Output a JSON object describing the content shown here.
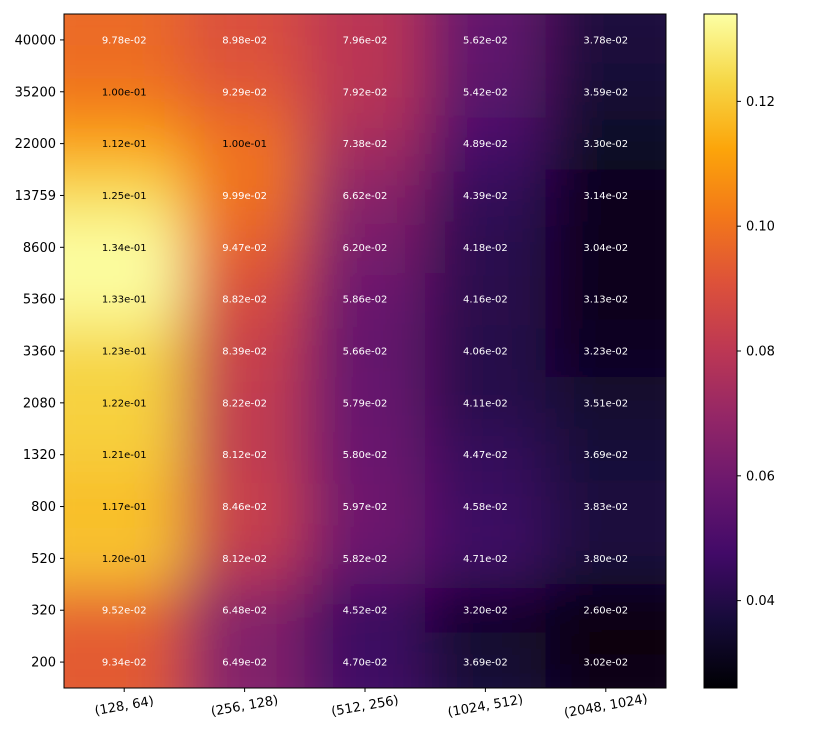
{
  "chart_data": {
    "type": "heatmap",
    "title": "",
    "xlabel": "",
    "ylabel": "",
    "x_categories": [
      "(128, 64)",
      "(256, 128)",
      "(512, 256)",
      "(1024, 512)",
      "(2048, 1024)"
    ],
    "y_categories": [
      "40000",
      "35200",
      "22000",
      "13759",
      "8600",
      "5360",
      "3360",
      "2080",
      "1320",
      "800",
      "520",
      "320",
      "200"
    ],
    "values": [
      [
        0.0978,
        0.0898,
        0.0796,
        0.0562,
        0.0378
      ],
      [
        0.1,
        0.0929,
        0.0792,
        0.0542,
        0.0359
      ],
      [
        0.112,
        0.1,
        0.0738,
        0.0489,
        0.033
      ],
      [
        0.125,
        0.0999,
        0.0662,
        0.0439,
        0.0314
      ],
      [
        0.134,
        0.0947,
        0.062,
        0.0418,
        0.0304
      ],
      [
        0.133,
        0.0882,
        0.0586,
        0.0416,
        0.0313
      ],
      [
        0.123,
        0.0839,
        0.0566,
        0.0406,
        0.0323
      ],
      [
        0.122,
        0.0822,
        0.0579,
        0.0411,
        0.0351
      ],
      [
        0.121,
        0.0812,
        0.058,
        0.0447,
        0.0369
      ],
      [
        0.117,
        0.0846,
        0.0597,
        0.0458,
        0.0383
      ],
      [
        0.12,
        0.0812,
        0.0582,
        0.0471,
        0.038
      ],
      [
        0.0952,
        0.0648,
        0.0452,
        0.032,
        0.026
      ],
      [
        0.0934,
        0.0649,
        0.047,
        0.0369,
        0.0302
      ]
    ],
    "labels": [
      [
        "9.78e-02",
        "8.98e-02",
        "7.96e-02",
        "5.62e-02",
        "3.78e-02"
      ],
      [
        "1.00e-01",
        "9.29e-02",
        "7.92e-02",
        "5.42e-02",
        "3.59e-02"
      ],
      [
        "1.12e-01",
        "1.00e-01",
        "7.38e-02",
        "4.89e-02",
        "3.30e-02"
      ],
      [
        "1.25e-01",
        "9.99e-02",
        "6.62e-02",
        "4.39e-02",
        "3.14e-02"
      ],
      [
        "1.34e-01",
        "9.47e-02",
        "6.20e-02",
        "4.18e-02",
        "3.04e-02"
      ],
      [
        "1.33e-01",
        "8.82e-02",
        "5.86e-02",
        "4.16e-02",
        "3.13e-02"
      ],
      [
        "1.23e-01",
        "8.39e-02",
        "5.66e-02",
        "4.06e-02",
        "3.23e-02"
      ],
      [
        "1.22e-01",
        "8.22e-02",
        "5.79e-02",
        "4.11e-02",
        "3.51e-02"
      ],
      [
        "1.21e-01",
        "8.12e-02",
        "5.80e-02",
        "4.47e-02",
        "3.69e-02"
      ],
      [
        "1.17e-01",
        "8.46e-02",
        "5.97e-02",
        "4.58e-02",
        "3.83e-02"
      ],
      [
        "1.20e-01",
        "8.12e-02",
        "5.82e-02",
        "4.71e-02",
        "3.80e-02"
      ],
      [
        "9.52e-02",
        "6.48e-02",
        "4.52e-02",
        "3.20e-02",
        "2.60e-02"
      ],
      [
        "9.34e-02",
        "6.49e-02",
        "4.70e-02",
        "3.69e-02",
        "3.02e-02"
      ]
    ],
    "colormap": "inferno",
    "colorbar": {
      "range": [
        0.026,
        0.134
      ],
      "ticks": [
        0.04,
        0.06,
        0.08,
        0.1,
        0.12
      ],
      "tick_labels": [
        "0.04",
        "0.06",
        "0.08",
        "0.10",
        "0.12"
      ]
    },
    "text_colors": {
      "dark": "#000000",
      "light": "#ffffff"
    },
    "light_text_below": 0.1
  }
}
